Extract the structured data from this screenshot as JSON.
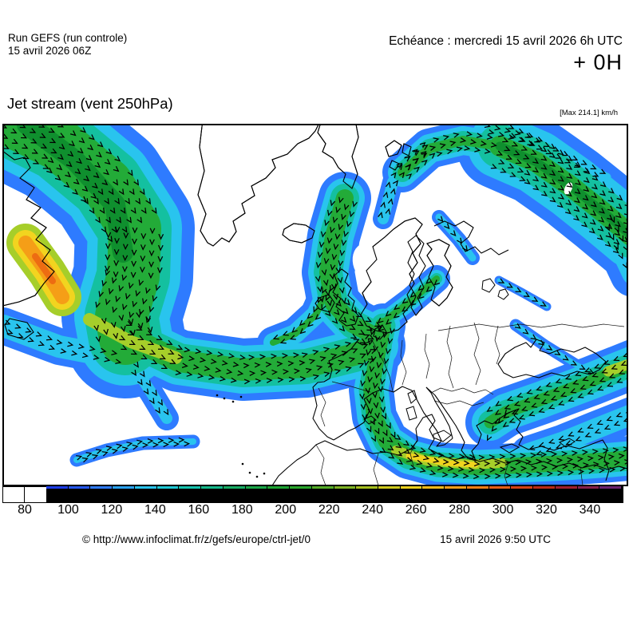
{
  "header": {
    "run_line1": "Run GEFS (run controle)",
    "run_line2": "15 avril 2026 06Z",
    "echeance": "Echéance : mercredi 15 avril 2026 6h UTC",
    "step": "+ 0H"
  },
  "title": "Jet stream (vent 250hPa)",
  "map": {
    "max_label": "[Max 214.1] km/h",
    "unit": "km/h"
  },
  "palette": {
    "blue": "#2e7bff",
    "cyan": "#29c4ee",
    "teal": "#14c0a0",
    "green": "#23ab38",
    "green_dark": "#0f8f2e",
    "yellow_green": "#a6ce2a",
    "yellow": "#f2d41f",
    "orange": "#f59e17",
    "orange_red": "#ed6c12",
    "land": "#ffffff",
    "coast": "#000000"
  },
  "colorbar": {
    "white_cells": 2,
    "ticks": [
      "80",
      "100",
      "120",
      "140",
      "160",
      "180",
      "200",
      "220",
      "240",
      "260",
      "280",
      "300",
      "320",
      "340"
    ],
    "segment_colors": [
      "#1c3ce8",
      "#2457f2",
      "#2e7bff",
      "#2aa2f5",
      "#29c4ee",
      "#1fc9d6",
      "#16c4ae",
      "#14b98a",
      "#17ad64",
      "#1aa747",
      "#1da432",
      "#2aa72c",
      "#55ad28",
      "#7fb424",
      "#a6bf1f",
      "#cfc91d",
      "#ecd01d",
      "#f2b91c",
      "#f49d1a",
      "#f07f18",
      "#e65f16",
      "#d44114",
      "#bb2a16",
      "#a01e2e",
      "#87204e",
      "#6d2170"
    ]
  },
  "footer": {
    "copyright": "© http://www.infoclimat.fr/z/gefs/europe/ctrl-jet/0",
    "datetime": "15 avril 2026  9:50 UTC"
  }
}
